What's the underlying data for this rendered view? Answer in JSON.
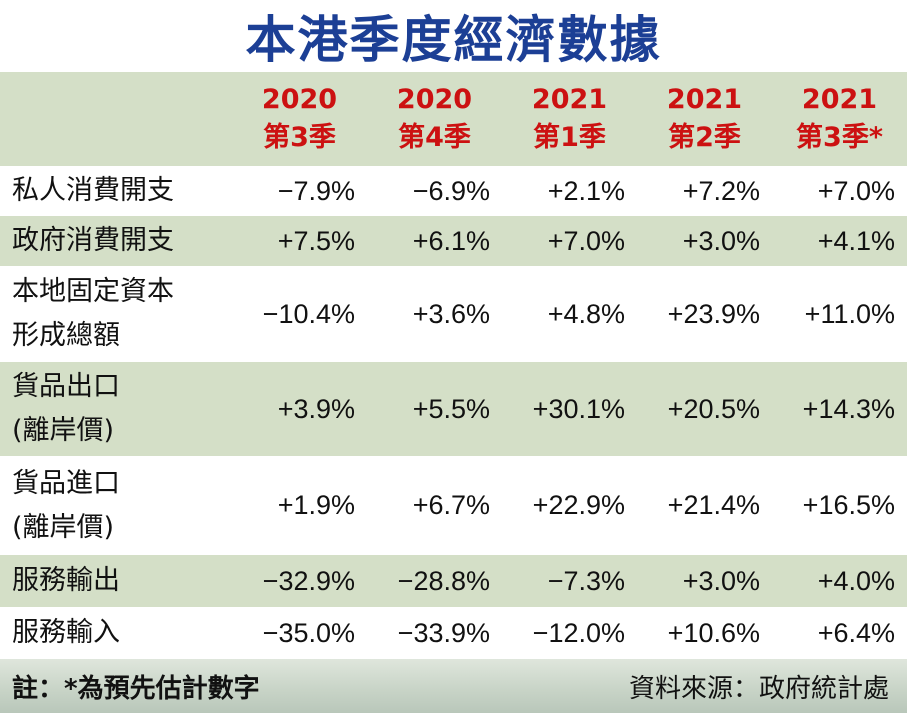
{
  "title": "本港季度經濟數據",
  "footer": {
    "note": "註：*為預先估計數字",
    "source": "資料來源：政府統計處"
  },
  "chart_data": {
    "type": "table",
    "columns": [
      {
        "year": "2020",
        "quarter": "第3季"
      },
      {
        "year": "2020",
        "quarter": "第4季"
      },
      {
        "year": "2021",
        "quarter": "第1季"
      },
      {
        "year": "2021",
        "quarter": "第2季"
      },
      {
        "year": "2021",
        "quarter": "第3季*"
      }
    ],
    "rows": [
      {
        "label": [
          "私人消費開支"
        ],
        "values": [
          "−7.9%",
          "−6.9%",
          "+2.1%",
          "+7.2%",
          "+7.0%"
        ]
      },
      {
        "label": [
          "政府消費開支"
        ],
        "values": [
          "+7.5%",
          "+6.1%",
          "+7.0%",
          "+3.0%",
          "+4.1%"
        ]
      },
      {
        "label": [
          "本地固定資本",
          "形成總額"
        ],
        "values": [
          "−10.4%",
          "+3.6%",
          "+4.8%",
          "+23.9%",
          "+11.0%"
        ]
      },
      {
        "label": [
          "貨品出口",
          "(離岸價)"
        ],
        "values": [
          "+3.9%",
          "+5.5%",
          "+30.1%",
          "+20.5%",
          "+14.3%"
        ]
      },
      {
        "label": [
          "貨品進口",
          "(離岸價)"
        ],
        "values": [
          "+1.9%",
          "+6.7%",
          "+22.9%",
          "+21.4%",
          "+16.5%"
        ]
      },
      {
        "label": [
          "服務輸出"
        ],
        "values": [
          "−32.9%",
          "−28.8%",
          "−7.3%",
          "+3.0%",
          "+4.0%"
        ]
      },
      {
        "label": [
          "服務輸入"
        ],
        "values": [
          "−35.0%",
          "−33.9%",
          "−12.0%",
          "+10.6%",
          "+6.4%"
        ]
      }
    ]
  }
}
